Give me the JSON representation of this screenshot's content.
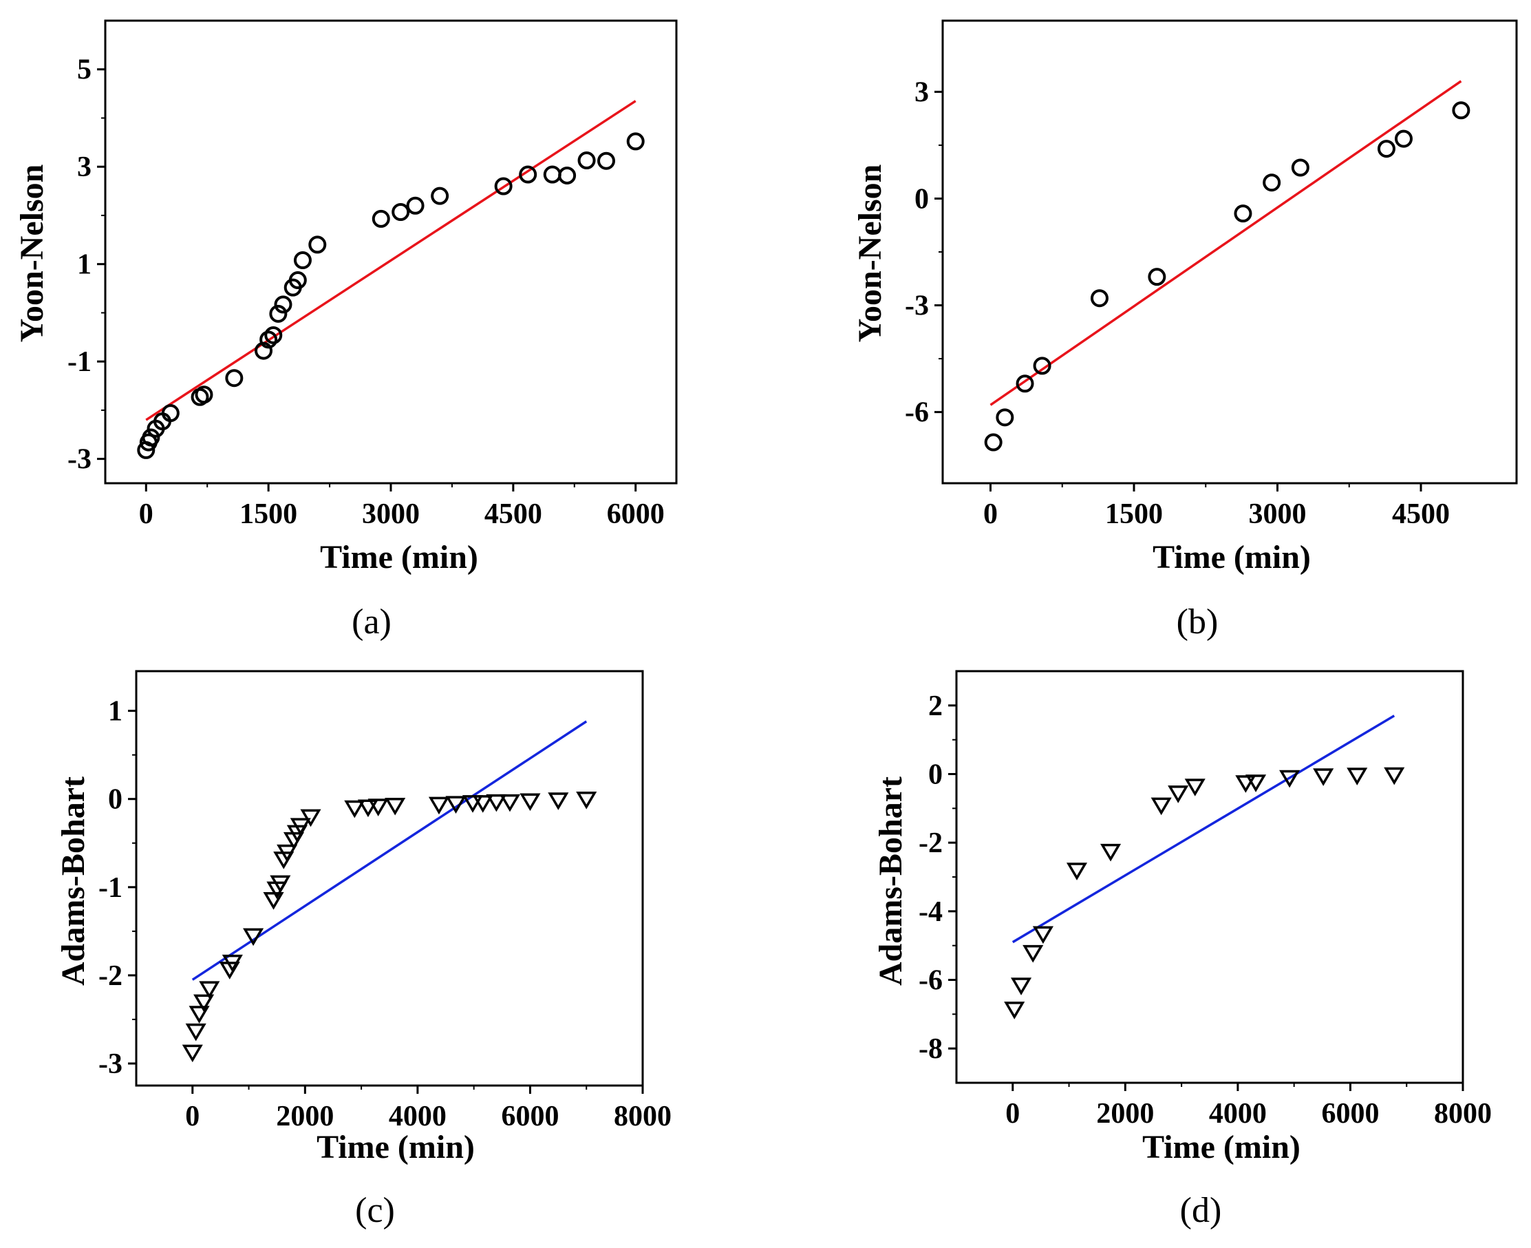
{
  "chart_data": [
    {
      "panel": "(a)",
      "type": "scatter",
      "xlabel": "Time (min)",
      "ylabel": "Yoon-Nelson",
      "xlim": [
        -500,
        6500
      ],
      "ylim": [
        -3.5,
        6
      ],
      "xticks": [
        0,
        1500,
        3000,
        4500,
        6000
      ],
      "yticks": [
        -3,
        -1,
        1,
        3,
        5
      ],
      "marker": "circle",
      "fit_color": "#e8141b",
      "points": {
        "x": [
          0,
          30,
          60,
          120,
          200,
          300,
          660,
          710,
          1080,
          1440,
          1500,
          1560,
          1620,
          1680,
          1800,
          1860,
          1920,
          2100,
          2880,
          3120,
          3300,
          3600,
          4380,
          4680,
          4980,
          5160,
          5400,
          5640,
          6000
        ],
        "y": [
          -2.82,
          -2.66,
          -2.56,
          -2.38,
          -2.23,
          -2.06,
          -1.73,
          -1.68,
          -1.34,
          -0.78,
          -0.55,
          -0.46,
          -0.02,
          0.17,
          0.52,
          0.67,
          1.08,
          1.4,
          1.93,
          2.07,
          2.2,
          2.4,
          2.6,
          2.84,
          2.84,
          2.82,
          3.13,
          3.12,
          3.52
        ]
      },
      "fit": {
        "x": [
          0,
          6000
        ],
        "y": [
          -2.2,
          4.35
        ]
      }
    },
    {
      "panel": "(b)",
      "type": "scatter",
      "xlabel": "Time (min)",
      "ylabel": "Yoon-Nelson",
      "xlim": [
        -500,
        5500
      ],
      "ylim": [
        -8,
        5
      ],
      "xticks": [
        0,
        1500,
        3000,
        4500
      ],
      "yticks": [
        -6,
        -3,
        0,
        3
      ],
      "marker": "circle",
      "fit_color": "#e8141b",
      "points": {
        "x": [
          30,
          150,
          360,
          540,
          1140,
          1740,
          2640,
          2940,
          3240,
          4140,
          4320,
          4920
        ],
        "y": [
          -6.85,
          -6.15,
          -5.2,
          -4.7,
          -2.8,
          -2.2,
          -0.42,
          0.45,
          0.87,
          1.4,
          1.68,
          2.48
        ]
      },
      "fit": {
        "x": [
          0,
          4920
        ],
        "y": [
          -5.8,
          3.3
        ]
      }
    },
    {
      "panel": "(c)",
      "type": "scatter",
      "xlabel": "Time (min)",
      "ylabel": "Adams-Bohart",
      "xlim": [
        -1000,
        8000
      ],
      "ylim": [
        -3.25,
        1.45
      ],
      "xticks": [
        0,
        2000,
        4000,
        6000,
        8000
      ],
      "yticks": [
        -3,
        -2,
        -1,
        0,
        1
      ],
      "marker": "triangle-down",
      "fit_color": "#1426dd",
      "points": {
        "x": [
          0,
          60,
          120,
          200,
          300,
          660,
          710,
          1080,
          1440,
          1500,
          1560,
          1620,
          1680,
          1800,
          1860,
          1920,
          2100,
          2880,
          3120,
          3300,
          3600,
          4380,
          4680,
          4980,
          5160,
          5400,
          5640,
          6000,
          6500,
          7000
        ],
        "y": [
          -2.87,
          -2.63,
          -2.43,
          -2.3,
          -2.15,
          -1.93,
          -1.85,
          -1.55,
          -1.14,
          -1.02,
          -0.95,
          -0.68,
          -0.6,
          -0.46,
          -0.38,
          -0.3,
          -0.2,
          -0.1,
          -0.09,
          -0.08,
          -0.07,
          -0.06,
          -0.05,
          -0.04,
          -0.04,
          -0.03,
          -0.03,
          -0.02,
          -0.01,
          0.0
        ]
      },
      "fit": {
        "x": [
          0,
          7000
        ],
        "y": [
          -2.05,
          0.88
        ]
      }
    },
    {
      "panel": "(d)",
      "type": "scatter",
      "xlabel": "Time (min)",
      "ylabel": "Adams-Bohart",
      "xlim": [
        -1000,
        8000
      ],
      "ylim": [
        -9,
        3
      ],
      "xticks": [
        0,
        2000,
        4000,
        6000,
        8000
      ],
      "yticks": [
        -8,
        -6,
        -4,
        -2,
        0,
        2
      ],
      "marker": "triangle-down",
      "fit_color": "#1426dd",
      "points": {
        "x": [
          30,
          150,
          360,
          540,
          1140,
          1740,
          2640,
          2940,
          3240,
          4140,
          4320,
          4920,
          5520,
          6120,
          6780
        ],
        "y": [
          -6.85,
          -6.15,
          -5.2,
          -4.65,
          -2.8,
          -2.25,
          -0.9,
          -0.55,
          -0.35,
          -0.25,
          -0.23,
          -0.1,
          -0.05,
          -0.03,
          -0.02
        ]
      },
      "fit": {
        "x": [
          0,
          6780
        ],
        "y": [
          -4.9,
          1.7
        ]
      }
    }
  ]
}
